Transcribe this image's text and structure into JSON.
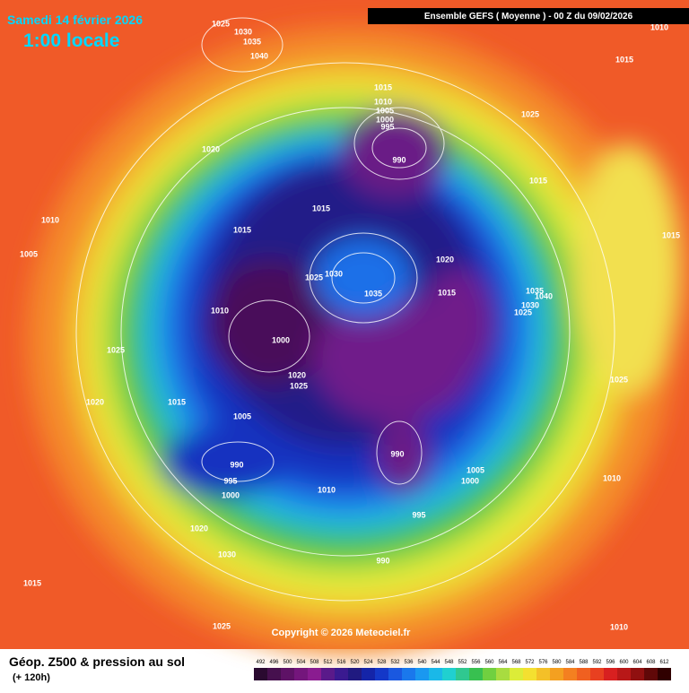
{
  "header": {
    "date": "Samedi 14 février 2026",
    "time": "1:00 locale",
    "run": "Ensemble GEFS  ( Moyenne )  -  00 Z du 09/02/2026"
  },
  "isobar_labels": [
    "1025",
    "1030",
    "1035",
    "1040",
    "1010",
    "1015",
    "1015",
    "1010",
    "1005",
    "1000",
    "995",
    "990",
    "1025",
    "1020",
    "1015",
    "1015",
    "1010",
    "1015",
    "1015",
    "1005",
    "1030",
    "1025",
    "1035",
    "1020",
    "1015",
    "1035",
    "1040",
    "1030",
    "1025",
    "1010",
    "1000",
    "1025",
    "1020",
    "1025",
    "1025",
    "1020",
    "1015",
    "1005",
    "990",
    "990",
    "1005",
    "1000",
    "995",
    "1010",
    "1000",
    "1010",
    "995",
    "1020",
    "1030",
    "990",
    "1015",
    "1025",
    "1010"
  ],
  "copyright": "Copyright © 2026 Meteociel.fr",
  "footer": {
    "title": "Géop. Z500 & pression au sol",
    "lead": "(+ 120h)"
  },
  "scale": [
    "492",
    "496",
    "500",
    "504",
    "508",
    "512",
    "516",
    "520",
    "524",
    "528",
    "532",
    "536",
    "540",
    "544",
    "548",
    "552",
    "556",
    "560",
    "564",
    "568",
    "572",
    "576",
    "580",
    "584",
    "588",
    "592",
    "596",
    "600",
    "604",
    "608",
    "612"
  ]
}
